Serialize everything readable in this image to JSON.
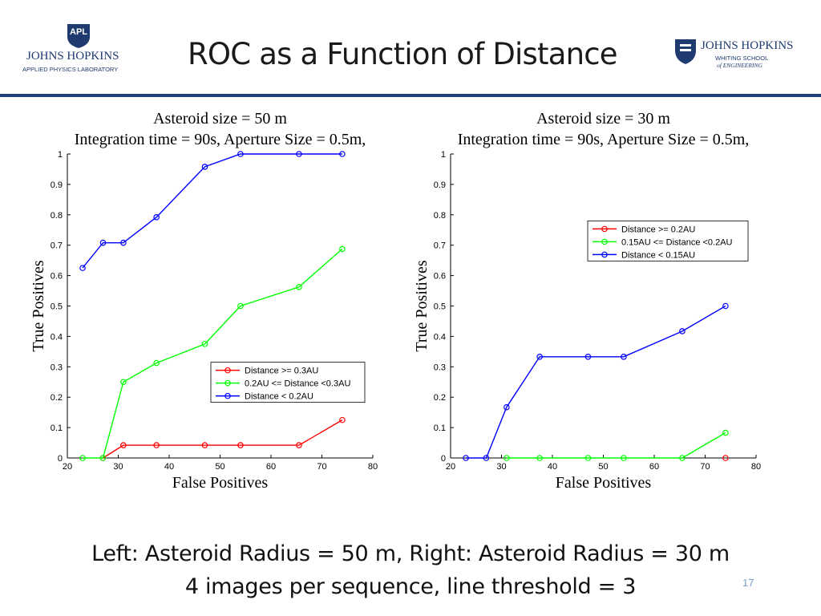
{
  "header": {
    "title": "ROC as a Function of Distance",
    "logo_left": {
      "badge": "APL",
      "line1": "JOHNS HOPKINS",
      "line2": "APPLIED PHYSICS LABORATORY"
    },
    "logo_right": {
      "line1": "JOHNS HOPKINS",
      "line2": "WHITING SCHOOL",
      "line3": "of ENGINEERING"
    }
  },
  "caption": {
    "line1": "Left: Asteroid Radius = 50 m, Right: Asteroid Radius = 30 m",
    "line2": "4 images per sequence, line threshold = 3"
  },
  "page_number": "17",
  "colors": {
    "accent": "#1f3f7a",
    "red": "#ff0000",
    "green": "#00ff00",
    "blue": "#0000ff"
  },
  "chart_data": [
    {
      "type": "line",
      "title": "Asteroid size = 50 m",
      "subtitle": "Integration time = 90s, Aperture Size = 0.5m,",
      "xlabel": "False Positives",
      "ylabel": "True Positives",
      "xlim": [
        20,
        80
      ],
      "ylim": [
        0,
        1
      ],
      "xticks": [
        "20",
        "30",
        "40",
        "50",
        "60",
        "70",
        "80"
      ],
      "yticks": [
        "0",
        "0.1",
        "0.2",
        "0.3",
        "0.4",
        "0.5",
        "0.6",
        "0.7",
        "0.8",
        "0.9",
        "1"
      ],
      "legend_position": "lower-right",
      "grid": false,
      "series": [
        {
          "name": "Distance >= 0.3AU",
          "color": "#ff0000",
          "points": [
            [
              27,
              0
            ],
            [
              31,
              0.042
            ],
            [
              37.5,
              0.042
            ],
            [
              47,
              0.042
            ],
            [
              54,
              0.042
            ],
            [
              65.5,
              0.042
            ],
            [
              74,
              0.125
            ]
          ]
        },
        {
          "name": "0.2AU <= Distance <0.3AU",
          "color": "#00ff00",
          "points": [
            [
              23,
              0
            ],
            [
              27,
              0
            ],
            [
              31,
              0.25
            ],
            [
              37.5,
              0.3125
            ],
            [
              47,
              0.375
            ],
            [
              54,
              0.5
            ],
            [
              65.5,
              0.5625
            ],
            [
              74,
              0.6875
            ]
          ]
        },
        {
          "name": "Distance < 0.2AU",
          "color": "#0000ff",
          "points": [
            [
              23,
              0.625
            ],
            [
              27,
              0.708
            ],
            [
              31,
              0.708
            ],
            [
              37.5,
              0.792
            ],
            [
              47,
              0.958
            ],
            [
              54,
              1
            ],
            [
              65.5,
              1
            ],
            [
              74,
              1
            ]
          ]
        }
      ]
    },
    {
      "type": "line",
      "title": "Asteroid size = 30 m",
      "subtitle": "Integration time = 90s, Aperture Size = 0.5m,",
      "xlabel": "False Positives",
      "ylabel": "True Positives",
      "xlim": [
        20,
        80
      ],
      "ylim": [
        0,
        1
      ],
      "xticks": [
        "20",
        "30",
        "40",
        "50",
        "60",
        "70",
        "80"
      ],
      "yticks": [
        "0",
        "0.1",
        "0.2",
        "0.3",
        "0.4",
        "0.5",
        "0.6",
        "0.7",
        "0.8",
        "0.9",
        "1"
      ],
      "legend_position": "upper-right",
      "grid": false,
      "series": [
        {
          "name": "Distance >= 0.2AU",
          "color": "#ff0000",
          "points": [
            [
              74,
              0
            ]
          ]
        },
        {
          "name": "0.15AU <= Distance <0.2AU",
          "color": "#00ff00",
          "points": [
            [
              31,
              0
            ],
            [
              37.5,
              0
            ],
            [
              47,
              0
            ],
            [
              54,
              0
            ],
            [
              65.5,
              0
            ],
            [
              74,
              0.083
            ]
          ]
        },
        {
          "name": "Distance < 0.15AU",
          "color": "#0000ff",
          "points": [
            [
              23,
              0
            ],
            [
              27,
              0
            ],
            [
              31,
              0.167
            ],
            [
              37.5,
              0.333
            ],
            [
              47,
              0.333
            ],
            [
              54,
              0.333
            ],
            [
              65.5,
              0.417
            ],
            [
              74,
              0.5
            ]
          ]
        }
      ]
    }
  ]
}
